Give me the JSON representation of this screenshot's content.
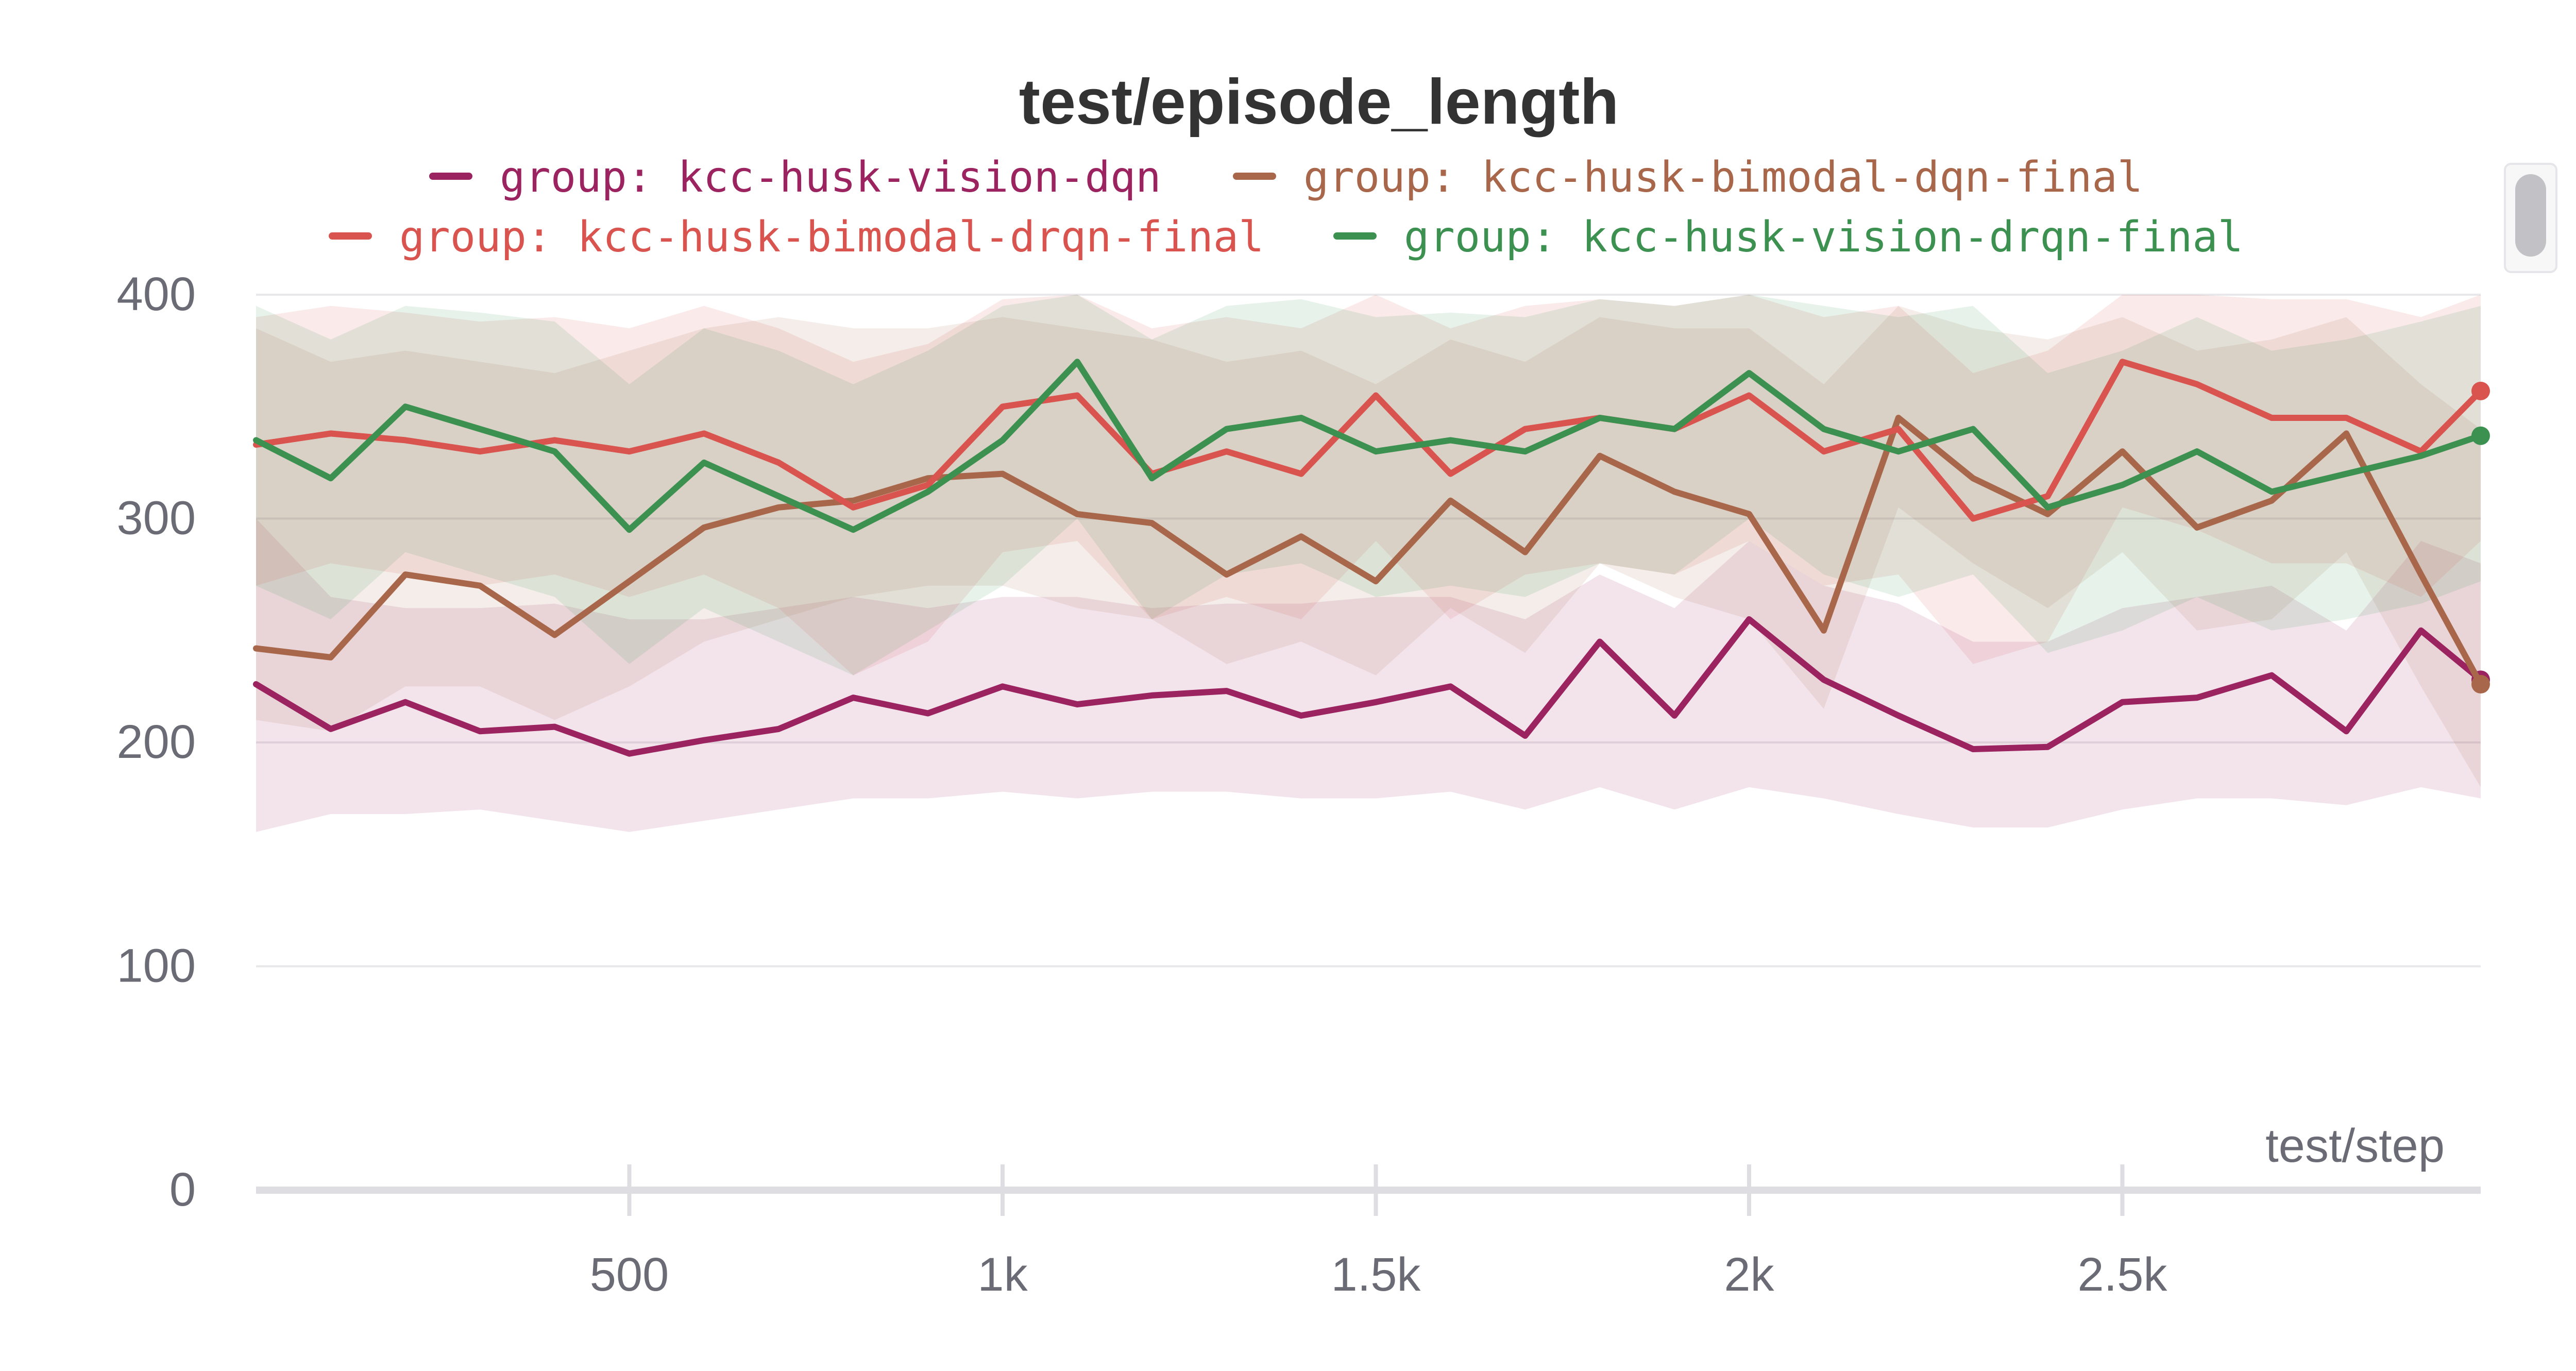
{
  "chart_data": {
    "type": "line",
    "title": "test/episode_length",
    "xlabel": "test/step",
    "ylabel": "",
    "xlim": [
      0,
      2980
    ],
    "ylim": [
      0,
      400
    ],
    "x_ticks": [
      500,
      1000,
      1500,
      2000,
      2500
    ],
    "x_tick_labels": [
      "500",
      "1k",
      "1.5k",
      "2k",
      "2.5k"
    ],
    "y_ticks": [
      0,
      100,
      200,
      300,
      400
    ],
    "y_tick_labels": [
      "0",
      "100",
      "200",
      "300",
      "400"
    ],
    "grid": true,
    "legend_position": "top",
    "x": [
      0,
      100,
      200,
      300,
      400,
      500,
      600,
      700,
      800,
      900,
      1000,
      1100,
      1200,
      1300,
      1400,
      1500,
      1600,
      1700,
      1800,
      1900,
      2000,
      2100,
      2200,
      2300,
      2400,
      2500,
      2600,
      2700,
      2800,
      2900,
      2980
    ],
    "series": [
      {
        "name": "group: kcc-husk-vision-dqn",
        "color": "#9b2360",
        "values": [
          226,
          206,
          218,
          205,
          207,
          195,
          201,
          206,
          220,
          213,
          225,
          217,
          221,
          223,
          212,
          218,
          225,
          203,
          245,
          212,
          255,
          228,
          212,
          197,
          198,
          218,
          220,
          230,
          205,
          250,
          228
        ],
        "band_lower": [
          160,
          168,
          168,
          170,
          165,
          160,
          165,
          170,
          175,
          175,
          178,
          175,
          178,
          178,
          175,
          175,
          178,
          170,
          180,
          170,
          180,
          175,
          168,
          162,
          162,
          170,
          175,
          175,
          172,
          180,
          175
        ],
        "band_upper": [
          300,
          265,
          260,
          260,
          262,
          255,
          255,
          260,
          265,
          260,
          265,
          265,
          260,
          262,
          262,
          265,
          265,
          255,
          275,
          260,
          290,
          270,
          262,
          245,
          245,
          260,
          265,
          270,
          250,
          290,
          280
        ]
      },
      {
        "name": "group: kcc-husk-bimodal-dqn-final",
        "color": "#a8674a",
        "values": [
          242,
          238,
          275,
          270,
          248,
          272,
          296,
          305,
          308,
          318,
          320,
          302,
          298,
          275,
          292,
          272,
          308,
          285,
          328,
          312,
          302,
          250,
          345,
          318,
          302,
          330,
          296,
          308,
          338,
          275,
          226
        ],
        "band_lower": [
          210,
          205,
          225,
          225,
          210,
          225,
          245,
          255,
          265,
          270,
          270,
          260,
          255,
          235,
          245,
          230,
          260,
          240,
          280,
          265,
          255,
          215,
          305,
          280,
          260,
          285,
          250,
          255,
          285,
          225,
          180
        ],
        "band_upper": [
          385,
          370,
          375,
          370,
          365,
          375,
          385,
          390,
          385,
          385,
          390,
          385,
          380,
          370,
          375,
          360,
          380,
          370,
          390,
          385,
          385,
          360,
          395,
          385,
          380,
          390,
          375,
          380,
          390,
          360,
          340
        ]
      },
      {
        "name": "group: kcc-husk-bimodal-drqn-final",
        "color": "#d9534f",
        "values": [
          333,
          338,
          335,
          330,
          335,
          330,
          338,
          325,
          305,
          315,
          350,
          355,
          320,
          330,
          320,
          355,
          320,
          340,
          345,
          340,
          355,
          330,
          340,
          300,
          310,
          370,
          360,
          345,
          345,
          330,
          357
        ],
        "band_lower": [
          270,
          280,
          275,
          270,
          275,
          265,
          275,
          260,
          230,
          245,
          285,
          290,
          255,
          265,
          255,
          290,
          255,
          275,
          280,
          275,
          290,
          270,
          275,
          235,
          245,
          305,
          295,
          280,
          280,
          265,
          290
        ],
        "band_upper": [
          390,
          395,
          392,
          388,
          390,
          385,
          395,
          385,
          370,
          378,
          398,
          400,
          385,
          390,
          385,
          400,
          385,
          395,
          398,
          395,
          400,
          390,
          395,
          365,
          375,
          400,
          400,
          398,
          398,
          390,
          400
        ]
      },
      {
        "name": "group: kcc-husk-vision-drqn-final",
        "color": "#3c9150",
        "values": [
          335,
          318,
          350,
          340,
          330,
          295,
          325,
          310,
          295,
          312,
          335,
          370,
          318,
          340,
          345,
          330,
          335,
          330,
          345,
          340,
          365,
          340,
          330,
          340,
          305,
          315,
          330,
          312,
          320,
          328,
          337
        ],
        "band_lower": [
          270,
          255,
          285,
          275,
          265,
          235,
          260,
          245,
          230,
          250,
          270,
          300,
          255,
          275,
          280,
          265,
          270,
          265,
          280,
          275,
          300,
          275,
          265,
          275,
          240,
          250,
          265,
          250,
          255,
          262,
          272
        ],
        "band_upper": [
          395,
          380,
          395,
          392,
          388,
          360,
          385,
          375,
          360,
          375,
          395,
          400,
          380,
          395,
          398,
          390,
          392,
          390,
          398,
          395,
          400,
          395,
          390,
          395,
          365,
          375,
          390,
          375,
          380,
          388,
          395
        ]
      }
    ]
  }
}
